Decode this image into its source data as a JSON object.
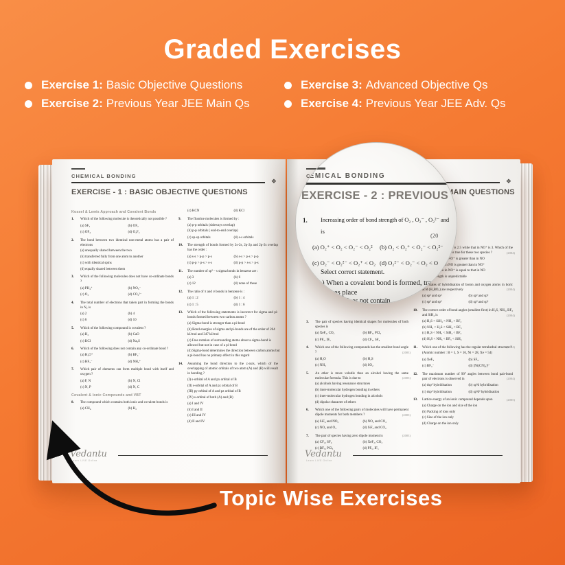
{
  "title": "Graded Exercises",
  "bullets": [
    {
      "label": "Exercise 1:",
      "text": "Basic Objective Questions"
    },
    {
      "label": "Exercise 2:",
      "text": "Previous Year JEE Main Qs"
    },
    {
      "label": "Exercise 3:",
      "text": "Advanced Objective Qs"
    },
    {
      "label": "Exercise 4:",
      "text": "Previous Year JEE Adv. Qs"
    }
  ],
  "annotation": "Topic Wise Exercises",
  "brand": {
    "logo": "Vedantu",
    "tagline": "Learn LIVE Online"
  },
  "left_page": {
    "chapter": "CHEMICAL BONDING",
    "ornament": "❖",
    "title": "EXERCISE - 1 : BASIC OBJECTIVE QUESTIONS",
    "col1": [
      {
        "topic": "Kossel & Lewis Approach and Covalent Bonds"
      },
      {
        "n": "1.",
        "t": "Which of the following molecule is theoretically not possible ?",
        "opts": [
          [
            "(a) SF₄",
            "(b) OF₂"
          ],
          [
            "(c) OF₄",
            "(d) O₂F₂"
          ]
        ]
      },
      {
        "n": "2.",
        "t": "The bond between two identical non-metal atoms has a pair of electrons",
        "lines": [
          "(a) unequally shared between the two",
          "(b) transferred fully from one atom to another",
          "(c) with identical spins",
          "(d) equally shared between them"
        ]
      },
      {
        "n": "3.",
        "t": "Which of the following molecules does not have co-ordinate bonds ?",
        "opts": [
          [
            "(a) PH₄⁺",
            "(b) NO₃⁻"
          ],
          [
            "(c) O₃",
            "(d) CO₃²⁻"
          ]
        ]
      },
      {
        "n": "4.",
        "t": "The total number of electrons that taken part in forming the bonds in N₂ is",
        "opts": [
          [
            "(a) 2",
            "(b) 4"
          ],
          [
            "(c) 6",
            "(d) 10"
          ]
        ]
      },
      {
        "n": "5.",
        "t": "Which of the following compound is covalent ?",
        "opts": [
          [
            "(a) H₂",
            "(b) CaO"
          ],
          [
            "(c) KCl",
            "(d) Na₂S"
          ]
        ]
      },
      {
        "n": "6.",
        "t": "Which of the following does not contain any co-ordinate bond ?",
        "opts": [
          [
            "(a) H₃O⁺",
            "(b) BF₄⁻"
          ],
          [
            "(c) HF₂⁻",
            "(d) NH₄⁺"
          ]
        ]
      },
      {
        "n": "7.",
        "t": "Which pair of elements can form multiple bond with itself and oxygen ?",
        "opts": [
          [
            "(a) F, N",
            "(b) N, Cl"
          ],
          [
            "(c) N, P",
            "(d) N, C"
          ]
        ]
      },
      {
        "topic": "Covalent & Ionic Compounds and VBT"
      },
      {
        "n": "8.",
        "t": "The compound which contains both ionic and covalent bonds is",
        "opts": [
          [
            "(a) CH₄",
            "(b) H₂"
          ]
        ]
      }
    ],
    "col2": [
      {
        "opts": [
          [
            "(c) KCN",
            "(d) KCl"
          ]
        ]
      },
      {
        "n": "9.",
        "t": "The fluorine molecules is formed by :",
        "lines": [
          "(a) p-p orbitals (sideways overlap)",
          "(b) p-p orbitals ( end-to-end overlap)"
        ],
        "opts": [
          [
            "(c) sp-sp orbitals",
            "(d) s-s orbitals"
          ]
        ]
      },
      {
        "n": "10.",
        "t": "The strength of bonds formed by 2s-2s, 2p-2p and 2p-2s overlap has the order :",
        "opts": [
          [
            "(a) s-s > p-p > p-s",
            "(b) s-s > p-s > p-p"
          ],
          [
            "(c) p-p > p-s > s-s",
            "(d) p-p > s-s > p-s"
          ]
        ]
      },
      {
        "n": "11.",
        "t": "The number of sp² – s sigma bonds in benzene are :",
        "opts": [
          [
            "(a) 3",
            "(b) 6"
          ],
          [
            "(c) 12",
            "(d) none of these"
          ]
        ]
      },
      {
        "n": "12.",
        "t": "The ratio of π and σ bonds in benzene is :",
        "opts": [
          [
            "(a) 1 : 2",
            "(b) 1 : 4"
          ],
          [
            "(c) 1 : 5",
            "(d) 1 : 6"
          ]
        ]
      },
      {
        "n": "13.",
        "t": "Which of the following statements is incorrect for sigma and pi-bonds formed between two carbon atoms ?",
        "lines": [
          "(a) Sigma-bond is stronger than a pi-bond",
          "(b) Bond energies of sigma and pi-bonds are of the order of 264 kJ/mol and 347 kJ/mol",
          "(c) Free rotation of surrounding atoms about a sigma-bond is allowed but not in case of a pi-bond",
          "(d) Sigma-bond determines the direction between carbon atoms but a pi-bond has no primary effect in this regard"
        ]
      },
      {
        "n": "14.",
        "t": "Assuming the bond direction to the z-axis, which of the overlapping of atomic orbitals of two atom (A) and (B) will result in bonding ?",
        "lines": [
          "(I) s-orbital of A and px orbital of B",
          "(II) s-orbital of A and pz orbital of B",
          "(III) py-orbital of A and pz orbital of B",
          "(IV) s-orbital of both (A) and (B)",
          "(a) I and IV",
          "(b) I and II",
          "(c) III and IV",
          "(d) II and IV"
        ]
      }
    ]
  },
  "right_page": {
    "chapter": "CHEMICAL BONDING",
    "ornament": "❖",
    "title": "EXERCISE - 2 : PREVIOUS YEAR JEE MAIN QUESTIONS",
    "col1": [
      {
        "n": "3.",
        "t": "The pair of species having identical shapes for molecules of both species is",
        "opts": [
          [
            "(a) XeF₂, CO₂",
            "(b) BF₃, PCl₃"
          ],
          [
            "(c) PF₅, IF₅",
            "(d) CF₄, SF₄"
          ]
        ]
      },
      {
        "n": "4.",
        "t": "Which one of the following compounds has the smallest bond angle ?",
        "year": "(2003)",
        "opts": [
          [
            "(a) H₂O",
            "(b) H₂S"
          ],
          [
            "(c) NH₃",
            "(d) SO₂"
          ]
        ]
      },
      {
        "n": "5.",
        "t": "An ether is more volatile than an alcohol having the same molecular formula. This is due to",
        "year": "(2003)",
        "lines": [
          "(a) alcohols having resonance structures",
          "(b) inter-molecular hydrogen bonding in ethers",
          "(c) inter-molecular hydrogen bonding in alcohols",
          "(d) dipolar character of ethers"
        ]
      },
      {
        "n": "6.",
        "t": "Which one of the following pairs of molecules will have permanent dipole moments for both members ?",
        "year": "(2003)",
        "opts": [
          [
            "(a) SiF₄ and NO₂",
            "(b) NO₂ and CO₂"
          ],
          [
            "(c) NO₂ and O₃",
            "(d) SiF₄ and CO₂"
          ]
        ]
      },
      {
        "n": "7.",
        "t": "The pair of species having zero dipole moment is",
        "year": "(2003)",
        "opts": [
          [
            "(a) CF₄, SF₄",
            "(b) XeF₂, CO₂"
          ],
          [
            "(c) BF₃, PCl₃",
            "(d) PF₅, IF₅"
          ]
        ]
      }
    ],
    "col2": [
      {
        "n": "8.",
        "t": "The bond order in NO is 2.5 while that in NO⁺ is 3. Which of the following statements is true for these two species ?",
        "year": "(2004)",
        "lines": [
          "(a) Bond length in NO⁺ is greater than in NO",
          "(b) Bond length in NO is greater than in NO⁺",
          "(c) Bond length in NO⁺ is equal to that in NO",
          "(d) Bond length is unpredictable"
        ]
      },
      {
        "n": "9.",
        "t": "The states of hybridisation of boron and oxygen atoms in boric acid (H₃BO₃) are respectively",
        "year": "(2004)",
        "opts": [
          [
            "(a) sp² and sp²",
            "(b) sp² and sp³"
          ],
          [
            "(c) sp³ and sp²",
            "(d) sp³ and sp³"
          ]
        ]
      },
      {
        "n": "10.",
        "t": "The correct order of bond angles (smallest first) in H₂S, NH₃, BF₃ and SiH₄ is",
        "year": "(2004)",
        "lines": [
          "(a) H₂S < SiH₄ < NH₃ < BF₃",
          "(b) NH₃ < H₂S < SiH₄ < BF₃",
          "(c) H₂S < NH₃ < SiH₄ < BF₃",
          "(d) H₂S < NH₃ < BF₃ < SiH₄"
        ]
      },
      {
        "n": "11.",
        "t": "Which one of the following has the regular tetrahedral structure ?",
        "year": "(2004)",
        "lines": [
          "(Atomic number : B = 5, S = 16, Ni = 28, Xe = 54)"
        ],
        "opts": [
          [
            "(a) XeF₄",
            "(b) SF₄"
          ],
          [
            "(c) BF₄⁻",
            "(d) [Ni(CN)₄]²⁻"
          ]
        ]
      },
      {
        "n": "12.",
        "t": "The maximum number of 90° angles between bond pair-bond pair of electrons is observed in",
        "year": "(2004)",
        "opts": [
          [
            "(a) dsp³ hybridisation",
            "(b) sp³d hybridisation"
          ],
          [
            "(c) dsp² hybridisation",
            "(d) sp³d² hybridisation"
          ]
        ]
      },
      {
        "n": "13.",
        "t": "Lattice energy of an ionic compound depends upon",
        "year": "(2005)",
        "lines": [
          "(a) Charge on the ion and size of the ion",
          "(b) Packing of ions only",
          "(c) Size of the ion only",
          "(d) Charge on the ion only"
        ]
      }
    ]
  },
  "magnifier": {
    "chapter": "CHEMICAL BONDING",
    "title": "EXERCISE - 2 : PREVIOUS YEA",
    "q1": {
      "n": "1.",
      "t": "Increasing order of bond strength of O₂ , O₂⁻ , O₂²⁻  and",
      "t2": "is",
      "year": "(20",
      "opt_a": "(a) O₂⁺ < O₂ < O₂⁻ < O₂²",
      "opt_b": "(b) O₂ < O₂⁺ < O₂⁻ < O₂²⁻",
      "opt_c": "(c) O₂⁻ < O₂²⁻ < O₂⁺ < O₂",
      "opt_d": "(d) O₂²⁻ < O₂⁻ < O₂ < O"
    },
    "select": "Select correct statement.",
    "q2_line1": "(a) When a covalent bond is formed, transfe",
    "q2_line2": "akes place",
    "fragment": "does not contain"
  }
}
